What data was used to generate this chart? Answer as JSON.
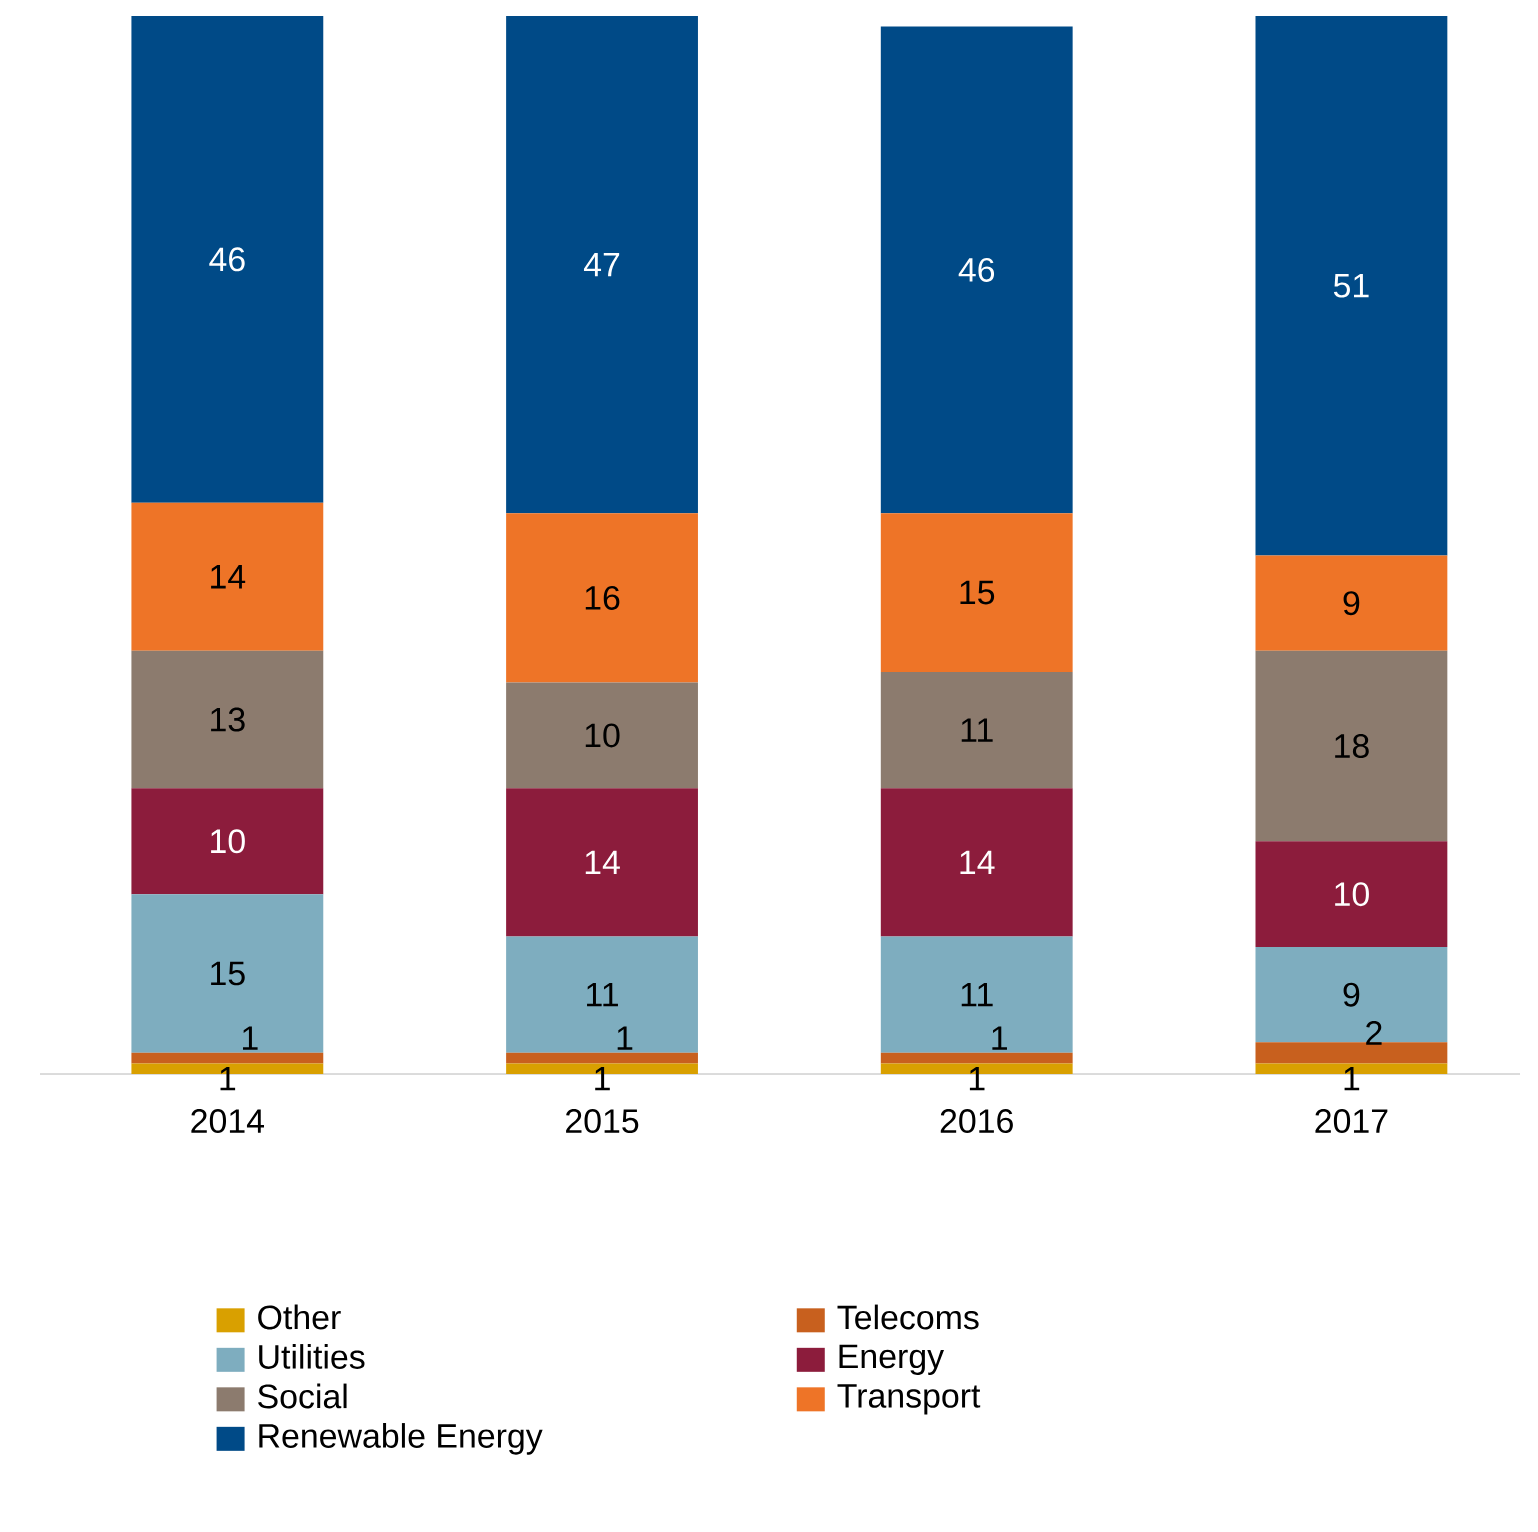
{
  "chart_data": {
    "type": "bar",
    "stacked": true,
    "data_labels": true,
    "legend": "bottom",
    "ylim": [
      0,
      100
    ],
    "tick_labels": "x",
    "categories": [
      "2014",
      "2015",
      "2016",
      "2017"
    ],
    "series": [
      {
        "name": "Other",
        "color": "#d9a000",
        "values": [
          1,
          1,
          1,
          1
        ]
      },
      {
        "name": "Telecoms",
        "color": "#c8601e",
        "values": [
          1,
          1,
          1,
          2
        ]
      },
      {
        "name": "Utilities",
        "color": "#7eadbf",
        "values": [
          15,
          11,
          11,
          9
        ]
      },
      {
        "name": "Energy",
        "color": "#8c1c3c",
        "values": [
          10,
          14,
          14,
          10
        ]
      },
      {
        "name": "Social",
        "color": "#8c7b6e",
        "values": [
          13,
          10,
          11,
          18
        ]
      },
      {
        "name": "Transport",
        "color": "#ee7427",
        "values": [
          14,
          16,
          15,
          9
        ]
      },
      {
        "name": "Renewable Energy",
        "color": "#004a87",
        "values": [
          46,
          47,
          46,
          51
        ]
      }
    ]
  }
}
